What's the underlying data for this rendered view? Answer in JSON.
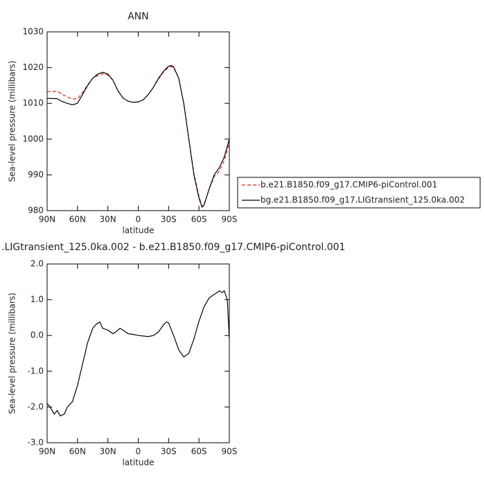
{
  "chart_data": [
    {
      "type": "line",
      "title": "ANN",
      "xlabel": "latitude",
      "ylabel": "Sea-level pressure (millibars)",
      "x": [
        90,
        80,
        75,
        70,
        65,
        60,
        55,
        50,
        45,
        40,
        35,
        30,
        25,
        20,
        15,
        10,
        5,
        0,
        -5,
        -10,
        -15,
        -20,
        -25,
        -30,
        -33,
        -35,
        -40,
        -45,
        -50,
        -55,
        -60,
        -63,
        -65,
        -70,
        -75,
        -80,
        -85,
        -90
      ],
      "series": [
        {
          "name": "b.e21.B1850.f09_g17.CMIP6-piControl.001",
          "color": "#e0201c",
          "linestyle": "dashed",
          "values": [
            1013.3,
            1013.4,
            1012.5,
            1011.8,
            1011.2,
            1011.3,
            1013,
            1015.2,
            1017,
            1017.8,
            1018.3,
            1017.9,
            1016.5,
            1013.5,
            1011.5,
            1010.6,
            1010.3,
            1010.4,
            1011,
            1012.5,
            1014.5,
            1016.8,
            1018.8,
            1020.1,
            1020.3,
            1020,
            1017,
            1010,
            1000,
            990.5,
            984,
            981.2,
            981.8,
            986,
            989.5,
            991,
            994,
            999
          ]
        },
        {
          "name": "bg.e21.B1850.f09_g17.LIGtransient_125.0ka.002",
          "color": "#000000",
          "linestyle": "solid",
          "values": [
            1011.4,
            1011.3,
            1010.5,
            1010,
            1009.6,
            1010,
            1012.5,
            1015,
            1017,
            1018.2,
            1018.7,
            1018.2,
            1016.5,
            1013.5,
            1011.5,
            1010.6,
            1010.3,
            1010.4,
            1011,
            1012.5,
            1014.5,
            1017,
            1019,
            1020.4,
            1020.6,
            1020.2,
            1017,
            1010,
            1000,
            990,
            983.5,
            981,
            981.5,
            986,
            990,
            992,
            995,
            1000
          ]
        }
      ],
      "xlim": [
        90,
        -90
      ],
      "xticks": [
        {
          "value": 90,
          "label": "90N"
        },
        {
          "value": 60,
          "label": "60N"
        },
        {
          "value": 30,
          "label": "30N"
        },
        0,
        {
          "value": -30,
          "label": "30S"
        },
        {
          "value": -60,
          "label": "60S"
        },
        {
          "value": -90,
          "label": "90S"
        }
      ],
      "ylim": [
        980,
        1030
      ],
      "yticks": [
        980,
        990,
        1000,
        1010,
        1020,
        1030
      ],
      "legend": "right"
    },
    {
      "type": "line",
      "title": ".LIGtransient_125.0ka.002 - b.e21.B1850.f09_g17.CMIP6-piControl.001",
      "xlabel": "latitude",
      "ylabel": "Sea-level pressure (millibars)",
      "x": [
        90,
        87,
        83,
        80,
        77,
        73,
        70,
        65,
        60,
        55,
        50,
        45,
        42,
        38,
        35,
        30,
        25,
        22,
        18,
        15,
        10,
        5,
        0,
        -10,
        -15,
        -20,
        -25,
        -28,
        -30,
        -35,
        -40,
        -45,
        -50,
        -55,
        -60,
        -65,
        -70,
        -75,
        -78,
        -80,
        -83,
        -85,
        -88,
        -90
      ],
      "series": [
        {
          "color": "#000000",
          "linestyle": "solid",
          "values": [
            -1.9,
            -2.0,
            -2.2,
            -2.1,
            -2.25,
            -2.2,
            -2.0,
            -1.85,
            -1.4,
            -0.8,
            -0.2,
            0.2,
            0.3,
            0.38,
            0.2,
            0.15,
            0.05,
            0.1,
            0.2,
            0.15,
            0.05,
            0.03,
            0.0,
            -0.03,
            0.0,
            0.1,
            0.3,
            0.38,
            0.35,
            0.0,
            -0.4,
            -0.6,
            -0.5,
            -0.1,
            0.4,
            0.8,
            1.05,
            1.15,
            1.2,
            1.25,
            1.2,
            1.25,
            1.0,
            -0.1
          ]
        }
      ],
      "xlim": [
        90,
        -90
      ],
      "xticks": [
        {
          "value": 90,
          "label": "90N"
        },
        {
          "value": 60,
          "label": "60N"
        },
        {
          "value": 30,
          "label": "30N"
        },
        0,
        {
          "value": -30,
          "label": "30S"
        },
        {
          "value": -60,
          "label": "60S"
        },
        {
          "value": -90,
          "label": "90S"
        }
      ],
      "ylim": [
        -3,
        2
      ],
      "yticks": [
        {
          "value": -3,
          "label": "-3.0"
        },
        {
          "value": -2,
          "label": "-2.0"
        },
        {
          "value": -1,
          "label": "-1.0"
        },
        {
          "value": 0,
          "label": "0.0"
        },
        {
          "value": 1,
          "label": "1.0"
        },
        {
          "value": 2,
          "label": "2.0"
        }
      ]
    }
  ]
}
